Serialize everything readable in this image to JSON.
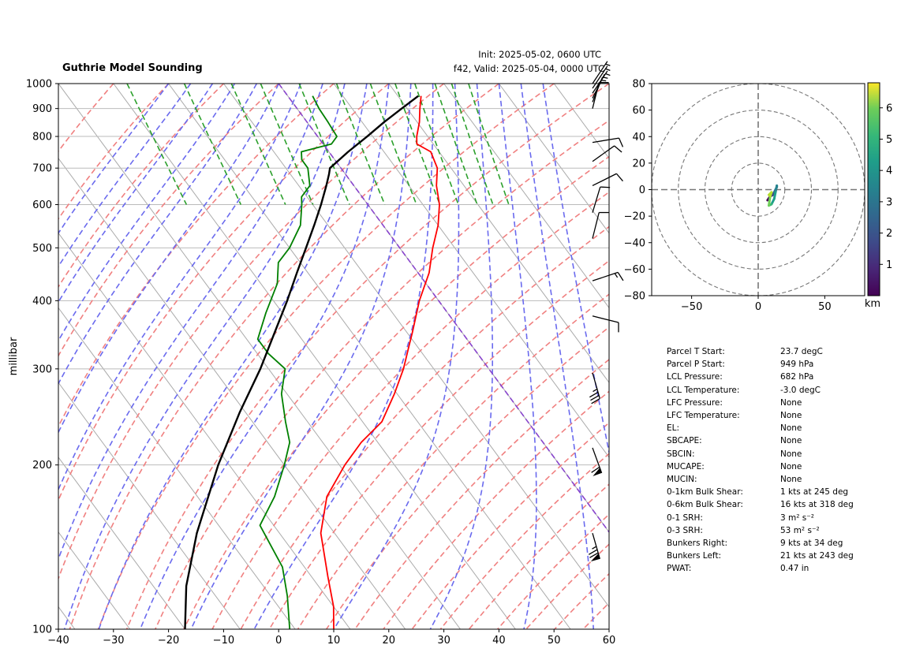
{
  "header": {
    "title": "Guthrie Model Sounding",
    "init_line": "Init: 2025-05-02, 0600 UTC",
    "valid_line": "f42, Valid: 2025-05-04, 0000 UTC"
  },
  "chart_data": [
    {
      "type": "line",
      "name": "skew-t",
      "ylabel": "millibar",
      "yscale": "log",
      "ylim": [
        1000,
        100
      ],
      "xlim": [
        -40,
        60
      ],
      "xticks": [
        -40,
        -30,
        -20,
        -10,
        0,
        10,
        20,
        30,
        40,
        50,
        60
      ],
      "yticks": [
        100,
        200,
        300,
        400,
        500,
        600,
        700,
        800,
        900,
        1000
      ],
      "skew_deg_per_decade": 73,
      "colors": {
        "temperature": "#ff0000",
        "dewpoint": "#008000",
        "parcel": "#000000",
        "dry_adiabat": "#f08080",
        "moist_adiabat": "#6a6aee",
        "mixing_ratio": "#2ca02c",
        "isotherm": "#aaaaaa",
        "isobar": "#bbbbbb",
        "zero_isotherm": "#8844cc"
      },
      "series": [
        {
          "name": "temperature",
          "points": [
            [
              949,
              24.2
            ],
            [
              900,
              22.3
            ],
            [
              850,
              20.4
            ],
            [
              800,
              18.0
            ],
            [
              775,
              17.0
            ],
            [
              750,
              18.5
            ],
            [
              700,
              17.5
            ],
            [
              650,
              15.0
            ],
            [
              600,
              13.0
            ],
            [
              550,
              10.0
            ],
            [
              500,
              6.0
            ],
            [
              450,
              2.0
            ],
            [
              400,
              -3.5
            ],
            [
              350,
              -9.0
            ],
            [
              330,
              -11.5
            ],
            [
              300,
              -15.5
            ],
            [
              270,
              -20.5
            ],
            [
              240,
              -26.5
            ],
            [
              220,
              -33.0
            ],
            [
              200,
              -39.0
            ],
            [
              175,
              -46.5
            ],
            [
              150,
              -52.5
            ],
            [
              125,
              -57.0
            ],
            [
              110,
              -60.0
            ],
            [
              100,
              -63.0
            ]
          ]
        },
        {
          "name": "dewpoint",
          "points": [
            [
              949,
              4.5
            ],
            [
              900,
              4.0
            ],
            [
              850,
              3.8
            ],
            [
              800,
              3.5
            ],
            [
              775,
              1.5
            ],
            [
              750,
              -5.0
            ],
            [
              725,
              -6.0
            ],
            [
              700,
              -6.0
            ],
            [
              650,
              -8.0
            ],
            [
              620,
              -11.0
            ],
            [
              600,
              -12.0
            ],
            [
              550,
              -15.0
            ],
            [
              500,
              -20.0
            ],
            [
              470,
              -24.0
            ],
            [
              430,
              -27.0
            ],
            [
              380,
              -33.0
            ],
            [
              340,
              -38.0
            ],
            [
              320,
              -38.0
            ],
            [
              300,
              -37.0
            ],
            [
              270,
              -41.0
            ],
            [
              240,
              -44.0
            ],
            [
              220,
              -46.0
            ],
            [
              200,
              -50.0
            ],
            [
              175,
              -56.0
            ],
            [
              155,
              -62.5
            ],
            [
              130,
              -64.0
            ],
            [
              115,
              -67.0
            ],
            [
              100,
              -71.0
            ]
          ]
        },
        {
          "name": "parcel",
          "points": [
            [
              949,
              23.7
            ],
            [
              900,
              19.0
            ],
            [
              850,
              14.0
            ],
            [
              800,
              9.0
            ],
            [
              750,
              3.5
            ],
            [
              700,
              -2.0
            ],
            [
              682,
              -3.0
            ],
            [
              650,
              -5.0
            ],
            [
              600,
              -8.5
            ],
            [
              550,
              -12.5
            ],
            [
              500,
              -17.0
            ],
            [
              450,
              -22.0
            ],
            [
              400,
              -27.5
            ],
            [
              350,
              -34.0
            ],
            [
              300,
              -41.5
            ],
            [
              250,
              -51.0
            ],
            [
              200,
              -62.0
            ],
            [
              150,
              -75.0
            ],
            [
              120,
              -84.0
            ],
            [
              100,
              -90.0
            ]
          ]
        }
      ],
      "wind_barbs": [
        {
          "p": 150,
          "u": -20,
          "v": 70
        },
        {
          "p": 215,
          "u": -20,
          "v": 55
        },
        {
          "p": 295,
          "u": -10,
          "v": 35
        },
        {
          "p": 375,
          "u": -12,
          "v": 3
        },
        {
          "p": 435,
          "u": -12,
          "v": -4
        },
        {
          "p": 520,
          "u": -3,
          "v": -12
        },
        {
          "p": 580,
          "u": -3,
          "v": -10
        },
        {
          "p": 650,
          "u": -10,
          "v": -5
        },
        {
          "p": 720,
          "u": -7,
          "v": -5
        },
        {
          "p": 780,
          "u": -12,
          "v": -2
        },
        {
          "p": 900,
          "u": -2,
          "v": -8
        },
        {
          "p": 925,
          "u": -2,
          "v": -5
        },
        {
          "p": 940,
          "u": -2,
          "v": -4
        },
        {
          "p": 960,
          "u": -2,
          "v": -3
        },
        {
          "p": 980,
          "u": -2,
          "v": -3
        },
        {
          "p": 1000,
          "u": -2,
          "v": -3
        }
      ]
    },
    {
      "type": "line",
      "name": "hodograph",
      "xlim": [
        -80,
        80
      ],
      "ylim": [
        -80,
        80
      ],
      "xticks": [
        -50,
        0,
        50
      ],
      "yticks": [
        -80,
        -60,
        -40,
        -20,
        0,
        20,
        40,
        60,
        80
      ],
      "rings": [
        20,
        40,
        60,
        80
      ],
      "colorbar": {
        "label": "km",
        "ticks": [
          1,
          2,
          3,
          4,
          5,
          6
        ],
        "range": [
          0,
          6.8
        ]
      },
      "series": [
        {
          "name": "hodograph",
          "points": [
            [
              7,
              -8,
              0.2
            ],
            [
              9,
              -5,
              0.8
            ],
            [
              11,
              -4,
              1.5
            ],
            [
              12,
              -2,
              2.2
            ],
            [
              13,
              0,
              2.6
            ],
            [
              14,
              2,
              2.9
            ],
            [
              14,
              3,
              3.1
            ],
            [
              13,
              -2,
              3.3
            ],
            [
              12,
              -7,
              3.6
            ],
            [
              10,
              -11,
              4.0
            ],
            [
              8,
              -12,
              4.6
            ],
            [
              9,
              -5,
              5.2
            ],
            [
              10,
              -2,
              5.8
            ],
            [
              8,
              -4,
              6.3
            ]
          ]
        }
      ]
    }
  ],
  "params": [
    {
      "label": "Parcel T Start:",
      "value": "23.7 degC"
    },
    {
      "label": "Parcel P Start:",
      "value": "949 hPa"
    },
    {
      "label": "LCL Pressure:",
      "value": "682 hPa"
    },
    {
      "label": "LCL Temperature:",
      "value": "-3.0 degC"
    },
    {
      "label": "LFC Pressure:",
      "value": "None"
    },
    {
      "label": "LFC Temperature:",
      "value": "None"
    },
    {
      "label": "EL:",
      "value": "None"
    },
    {
      "label": "SBCAPE:",
      "value": "None"
    },
    {
      "label": "SBCIN:",
      "value": "None"
    },
    {
      "label": "MUCAPE:",
      "value": "None"
    },
    {
      "label": "MUCIN:",
      "value": "None"
    },
    {
      "label": "0-1km Bulk Shear:",
      "value": "1 kts at 245 deg"
    },
    {
      "label": "0-6km Bulk Shear:",
      "value": "16 kts at 318 deg"
    },
    {
      "label": "0-1 SRH:",
      "value": "3 m² s⁻²"
    },
    {
      "label": "0-3 SRH:",
      "value": "53 m² s⁻²"
    },
    {
      "label": "Bunkers Right:",
      "value": "9 kts at 34 deg"
    },
    {
      "label": "Bunkers Left:",
      "value": "21 kts at 243 deg"
    },
    {
      "label": "PWAT:",
      "value": "0.47 in"
    }
  ]
}
